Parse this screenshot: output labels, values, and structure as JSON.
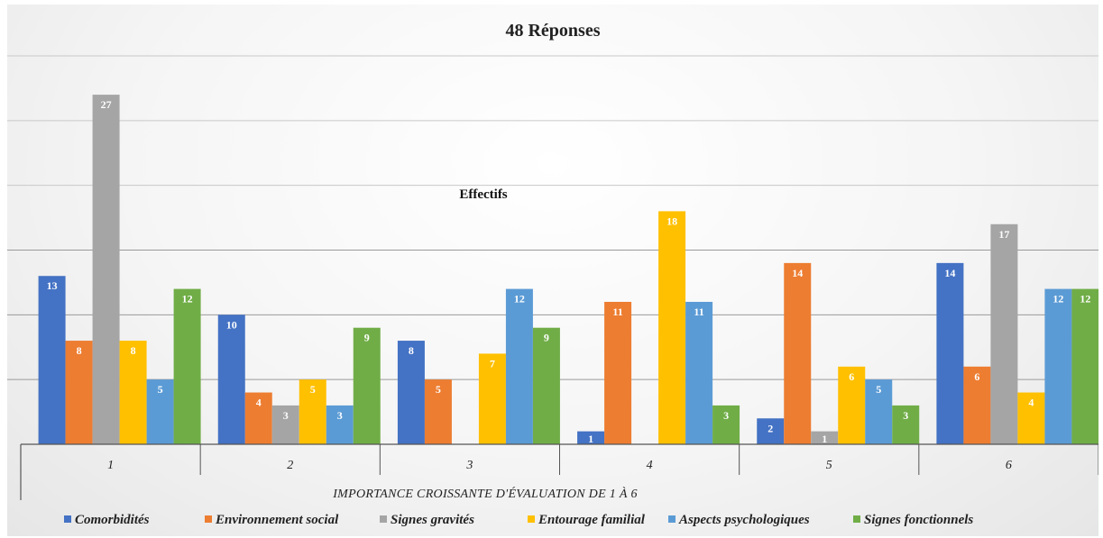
{
  "chart_data": {
    "type": "bar",
    "title": "48 Réponses",
    "ylabel": "Effectifs",
    "xlabel": "IMPORTANCE CROISSANTE D'ÉVALUATION DE 1 À 6",
    "categories": [
      "1",
      "2",
      "3",
      "4",
      "5",
      "6"
    ],
    "ylim": [
      0,
      30
    ],
    "grid": true,
    "legend_position": "bottom",
    "series": [
      {
        "name": "Comorbidités",
        "color": "#4472c4",
        "values": [
          13,
          10,
          8,
          1,
          2,
          14
        ]
      },
      {
        "name": "Environnement social",
        "color": "#ed7d31",
        "values": [
          8,
          4,
          5,
          11,
          14,
          6
        ]
      },
      {
        "name": "Signes gravités",
        "color": "#a5a5a5",
        "values": [
          27,
          3,
          0,
          0,
          1,
          17
        ]
      },
      {
        "name": "Entourage familial",
        "color": "#ffc000",
        "values": [
          8,
          5,
          7,
          18,
          6,
          4
        ]
      },
      {
        "name": "Aspects psychologiques",
        "color": "#5b9bd5",
        "values": [
          5,
          3,
          12,
          11,
          5,
          12
        ]
      },
      {
        "name": "Signes fonctionnels",
        "color": "#70ad47",
        "values": [
          12,
          9,
          9,
          3,
          3,
          12
        ]
      }
    ]
  }
}
